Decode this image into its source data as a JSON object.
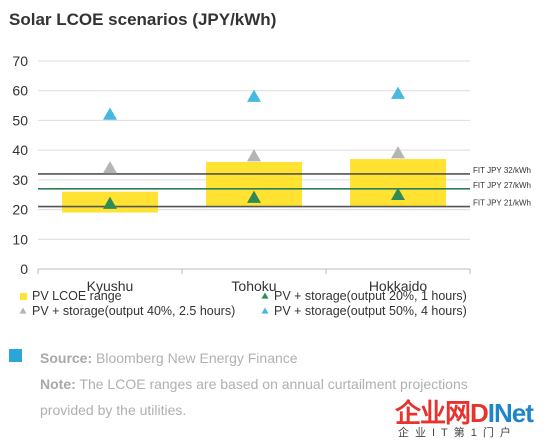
{
  "header": {
    "title": "Solar LCOE scenarios (JPY/kWh)"
  },
  "chart_data": {
    "type": "scatter",
    "title": "Solar LCOE scenarios (JPY/kWh)",
    "categories": [
      "Kyushu",
      "Tohoku",
      "Hokkaido"
    ],
    "ylim": [
      0,
      70
    ],
    "yticks": [
      0,
      10,
      20,
      30,
      40,
      50,
      60,
      70
    ],
    "grid": true,
    "legend_position": "bottom",
    "ranges": {
      "name": "PV LCOE range",
      "color": "#ffe232",
      "low": [
        19,
        21,
        21
      ],
      "high": [
        26,
        36,
        37
      ]
    },
    "series": [
      {
        "name": "PV + storage(output 20%, 1 hours)",
        "marker": "triangle",
        "color": "#2e8b57",
        "values": [
          22,
          24,
          25
        ]
      },
      {
        "name": "PV + storage(output 40%, 2.5 hours)",
        "marker": "triangle",
        "color": "#b5b5b5",
        "values": [
          34,
          38,
          39
        ]
      },
      {
        "name": "PV + storage(output 50%, 4 hours)",
        "marker": "triangle",
        "color": "#47b8e0",
        "values": [
          52,
          58,
          59
        ]
      }
    ],
    "reference_lines": [
      {
        "label": "FIT JPY 32/kWh",
        "value": 32,
        "color": "#555555"
      },
      {
        "label": "FIT JPY 27/kWh",
        "value": 27,
        "color": "#2e7d5a"
      },
      {
        "label": "FIT JPY 21/kWh",
        "value": 21,
        "color": "#555555"
      }
    ]
  },
  "footer": {
    "source_label": "Source:",
    "source_text": " Bloomberg New Energy Finance",
    "note_label": "Note:",
    "note_text_1": " The LCOE ranges are based on annual curtailment projections",
    "note_text_2": "provided by the utilities."
  },
  "watermark": {
    "part1": "企业网",
    "part2": "D",
    "part3": "INet",
    "sub": "企业IT第1门户"
  }
}
